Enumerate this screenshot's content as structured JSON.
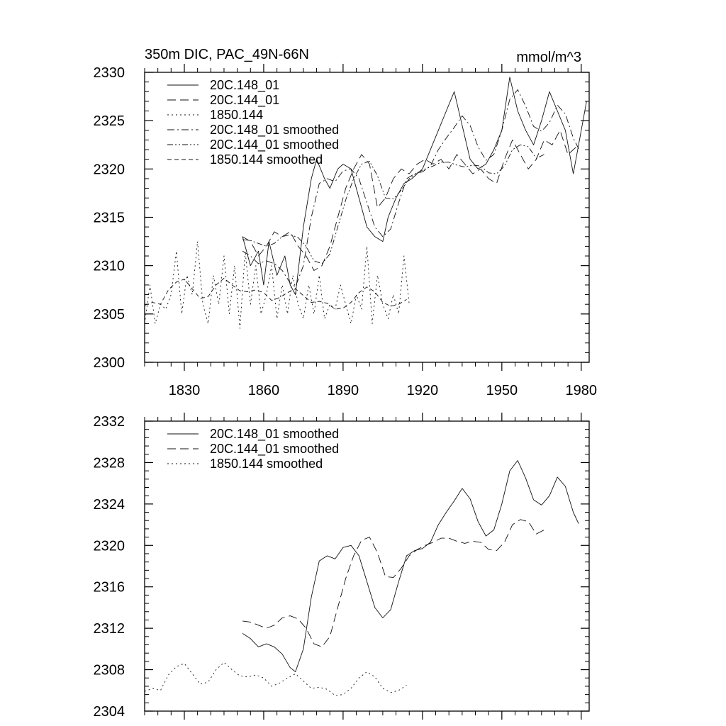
{
  "chart_data": [
    {
      "type": "line",
      "title": "350m DIC, PAC_49N-66N",
      "units_label": "mmol/m^3",
      "xlim": [
        1815,
        1983
      ],
      "ylim": [
        2300,
        2330
      ],
      "xticks": [
        1830,
        1860,
        1890,
        1920,
        1950,
        1980
      ],
      "yticks": [
        2300,
        2305,
        2310,
        2315,
        2320,
        2325,
        2330
      ],
      "xtick_labels": [
        "1830",
        "1860",
        "1890",
        "1920",
        "1950",
        "1980"
      ],
      "ytick_labels": [
        "2300",
        "2305",
        "2310",
        "2315",
        "2320",
        "2325",
        "2330"
      ],
      "legend_position": "top-left",
      "series": [
        {
          "name": "20C.148_01",
          "dash": "solid",
          "x": [
            1852,
            1855,
            1858,
            1860,
            1862,
            1865,
            1868,
            1870,
            1872,
            1875,
            1878,
            1880,
            1883,
            1885,
            1888,
            1890,
            1893,
            1896,
            1899,
            1902,
            1905,
            1907,
            1910,
            1913,
            1916,
            1920,
            1923,
            1926,
            1929,
            1932,
            1935,
            1938,
            1941,
            1944,
            1947,
            1950,
            1953,
            1956,
            1959,
            1962,
            1965,
            1968,
            1971,
            1974,
            1977,
            1979,
            1982
          ],
          "y": [
            2313,
            2310,
            2311.5,
            2308,
            2312.5,
            2309,
            2311,
            2308,
            2307,
            2314,
            2319,
            2321,
            2319,
            2318,
            2320,
            2320.5,
            2320,
            2317,
            2314,
            2313,
            2312.5,
            2315,
            2317,
            2318.5,
            2319,
            2320,
            2322,
            2324,
            2326,
            2328,
            2324.5,
            2321,
            2320,
            2320.5,
            2322,
            2324,
            2329.5,
            2326,
            2324,
            2322.5,
            2325,
            2328,
            2326,
            2324,
            2319.5,
            2322.5,
            2327
          ]
        },
        {
          "name": "20C.144_01",
          "dash": "longdash",
          "x": [
            1852,
            1855,
            1858,
            1861,
            1864,
            1867,
            1870,
            1873,
            1876,
            1879,
            1882,
            1885,
            1888,
            1891,
            1894,
            1897,
            1900,
            1903,
            1906,
            1909,
            1912,
            1915,
            1918,
            1921,
            1924,
            1927,
            1930,
            1933,
            1936,
            1939,
            1942,
            1945,
            1948,
            1951,
            1954,
            1957,
            1960,
            1963,
            1966,
            1969,
            1972,
            1975,
            1979
          ],
          "y": [
            2313,
            2312.5,
            2311,
            2312,
            2313.5,
            2313,
            2313.5,
            2312,
            2311,
            2309.5,
            2310,
            2312,
            2315,
            2318,
            2320,
            2321.5,
            2320.5,
            2316,
            2317,
            2319,
            2320,
            2319.5,
            2320.5,
            2321,
            2320.5,
            2321,
            2320,
            2321.5,
            2320.5,
            2319.5,
            2320,
            2319,
            2318.5,
            2321,
            2323,
            2321.5,
            2320,
            2321,
            2323,
            2322.5,
            2324,
            2321.5,
            2322.5
          ]
        },
        {
          "name": "1850.144",
          "dash": "dotted",
          "x": [
            1815,
            1817,
            1819,
            1821,
            1823,
            1825,
            1827,
            1829,
            1831,
            1833,
            1835,
            1837,
            1839,
            1841,
            1843,
            1845,
            1847,
            1849,
            1851,
            1853,
            1855,
            1857,
            1859,
            1861,
            1863,
            1865,
            1867,
            1869,
            1871,
            1873,
            1875,
            1877,
            1879,
            1881,
            1883,
            1885,
            1887,
            1889,
            1891,
            1893,
            1895,
            1897,
            1899,
            1901,
            1903,
            1905,
            1907,
            1909,
            1911,
            1913,
            1915
          ],
          "y": [
            2304,
            2308,
            2304,
            2306,
            2305.5,
            2307,
            2311.5,
            2305,
            2309,
            2307,
            2312.5,
            2306,
            2304,
            2309,
            2306,
            2311,
            2305,
            2310,
            2303.5,
            2311.5,
            2306,
            2310,
            2305,
            2307,
            2310,
            2304.5,
            2308,
            2305,
            2309,
            2306,
            2304.5,
            2308,
            2305,
            2309,
            2304.5,
            2306,
            2305.5,
            2308,
            2306,
            2304,
            2307,
            2305.5,
            2312,
            2304,
            2309,
            2306,
            2304.5,
            2307,
            2305,
            2311,
            2306
          ]
        },
        {
          "name": "20C.148_01 smoothed",
          "dash": "dashdot",
          "x": [
            1852,
            1855,
            1858,
            1861,
            1864,
            1867,
            1870,
            1872,
            1875,
            1878,
            1881,
            1884,
            1887,
            1890,
            1893,
            1896,
            1899,
            1902,
            1905,
            1908,
            1911,
            1914,
            1917,
            1920,
            1923,
            1926,
            1929,
            1932,
            1935,
            1938,
            1941,
            1944,
            1947,
            1950,
            1953,
            1956,
            1959,
            1962,
            1965,
            1968,
            1971,
            1974,
            1977,
            1979
          ],
          "y": [
            2311.5,
            2311,
            2310.2,
            2310.5,
            2310.2,
            2309.5,
            2308.2,
            2307.8,
            2310,
            2315,
            2318.5,
            2319,
            2318.7,
            2319.8,
            2320,
            2319,
            2316.5,
            2314,
            2313,
            2313.8,
            2316.5,
            2319,
            2319.5,
            2319.7,
            2320.3,
            2322,
            2323.2,
            2324.3,
            2325.5,
            2324.5,
            2322.3,
            2320.9,
            2321.5,
            2324,
            2327.2,
            2328.2,
            2326.5,
            2324.4,
            2323.9,
            2324.8,
            2326.6,
            2325.7,
            2323.2,
            2322.1
          ]
        },
        {
          "name": "20C.144_01 smoothed",
          "dash": "dashdotdot",
          "x": [
            1852,
            1855,
            1858,
            1861,
            1864,
            1867,
            1870,
            1873,
            1876,
            1879,
            1882,
            1885,
            1888,
            1891,
            1894,
            1897,
            1900,
            1903,
            1906,
            1909,
            1912,
            1915,
            1918,
            1921,
            1924,
            1927,
            1930,
            1933,
            1936,
            1939,
            1942,
            1945,
            1948,
            1951,
            1954,
            1957,
            1960,
            1963,
            1966
          ],
          "y": [
            2312.7,
            2312.6,
            2312.3,
            2312,
            2312.3,
            2313,
            2313.2,
            2312.9,
            2312,
            2310.5,
            2310.2,
            2311.2,
            2314,
            2316.8,
            2319,
            2320.5,
            2320.8,
            2319.3,
            2317,
            2316.9,
            2317.8,
            2319,
            2319.6,
            2320,
            2320.3,
            2320.7,
            2320.7,
            2320.4,
            2320.2,
            2320.4,
            2320.3,
            2319.6,
            2319.5,
            2320.3,
            2322,
            2322.5,
            2322.3,
            2321.1,
            2321.5
          ]
        },
        {
          "name": "1850.144 smoothed",
          "dash": "shortdash",
          "x": [
            1815,
            1818,
            1821,
            1824,
            1827,
            1830,
            1833,
            1836,
            1839,
            1842,
            1845,
            1848,
            1851,
            1854,
            1857,
            1860,
            1863,
            1866,
            1869,
            1872,
            1875,
            1878,
            1881,
            1884,
            1887,
            1890,
            1893,
            1896,
            1899,
            1902,
            1905,
            1908,
            1911,
            1914
          ],
          "y": [
            2305.9,
            2306.2,
            2306,
            2307.5,
            2308.3,
            2308.6,
            2307.6,
            2306.6,
            2306.8,
            2308,
            2308.7,
            2308,
            2307.4,
            2307.3,
            2307.5,
            2307.2,
            2306.4,
            2306.7,
            2307.2,
            2307.6,
            2306.9,
            2306.2,
            2306.3,
            2306.1,
            2305.5,
            2305.6,
            2306.2,
            2307.2,
            2307.8,
            2307.3,
            2306.2,
            2305.8,
            2306,
            2306.5
          ]
        }
      ]
    },
    {
      "type": "line",
      "title": "",
      "xlim": [
        1815,
        1983
      ],
      "ylim": [
        2304,
        2332
      ],
      "xticks": [
        1830,
        1860,
        1890,
        1920,
        1950,
        1980
      ],
      "yticks": [
        2304,
        2308,
        2312,
        2316,
        2320,
        2324,
        2328,
        2332
      ],
      "ytick_labels": [
        "2304",
        "2308",
        "2312",
        "2316",
        "2320",
        "2324",
        "2328",
        "2332"
      ],
      "legend_position": "top-left",
      "series": [
        {
          "name": "20C.148_01 smoothed",
          "dash": "solid",
          "x": [
            1852,
            1855,
            1858,
            1861,
            1864,
            1867,
            1870,
            1872,
            1875,
            1878,
            1881,
            1884,
            1887,
            1890,
            1893,
            1896,
            1899,
            1902,
            1905,
            1908,
            1911,
            1914,
            1917,
            1920,
            1923,
            1926,
            1929,
            1932,
            1935,
            1938,
            1941,
            1944,
            1947,
            1950,
            1953,
            1956,
            1959,
            1962,
            1965,
            1968,
            1971,
            1974,
            1977,
            1979
          ],
          "y": [
            2311.5,
            2311,
            2310.2,
            2310.5,
            2310.2,
            2309.5,
            2308.2,
            2307.8,
            2310,
            2315,
            2318.5,
            2319,
            2318.7,
            2319.8,
            2320,
            2319,
            2316.5,
            2314,
            2313,
            2313.8,
            2316.5,
            2319,
            2319.5,
            2319.7,
            2320.3,
            2322,
            2323.2,
            2324.3,
            2325.5,
            2324.5,
            2322.3,
            2320.9,
            2321.5,
            2324,
            2327.2,
            2328.2,
            2326.5,
            2324.4,
            2323.9,
            2324.8,
            2326.6,
            2325.7,
            2323.2,
            2322.1
          ]
        },
        {
          "name": "20C.144_01 smoothed",
          "dash": "longdash",
          "x": [
            1852,
            1855,
            1858,
            1861,
            1864,
            1867,
            1870,
            1873,
            1876,
            1879,
            1882,
            1885,
            1888,
            1891,
            1894,
            1897,
            1900,
            1903,
            1906,
            1909,
            1912,
            1915,
            1918,
            1921,
            1924,
            1927,
            1930,
            1933,
            1936,
            1939,
            1942,
            1945,
            1948,
            1951,
            1954,
            1957,
            1960,
            1963,
            1966
          ],
          "y": [
            2312.7,
            2312.6,
            2312.3,
            2312,
            2312.3,
            2313,
            2313.2,
            2312.9,
            2312,
            2310.5,
            2310.2,
            2311.2,
            2314,
            2316.8,
            2319,
            2320.5,
            2320.8,
            2319.3,
            2317,
            2316.9,
            2317.8,
            2319,
            2319.6,
            2320,
            2320.3,
            2320.7,
            2320.7,
            2320.4,
            2320.2,
            2320.4,
            2320.3,
            2319.6,
            2319.5,
            2320.3,
            2322,
            2322.5,
            2322.3,
            2321.1,
            2321.5
          ]
        },
        {
          "name": "1850.144 smoothed",
          "dash": "dotted",
          "x": [
            1815,
            1818,
            1821,
            1824,
            1827,
            1830,
            1833,
            1836,
            1839,
            1842,
            1845,
            1848,
            1851,
            1854,
            1857,
            1860,
            1863,
            1866,
            1869,
            1872,
            1875,
            1878,
            1881,
            1884,
            1887,
            1890,
            1893,
            1896,
            1899,
            1902,
            1905,
            1908,
            1911,
            1914
          ],
          "y": [
            2305.9,
            2306.2,
            2306,
            2307.5,
            2308.3,
            2308.6,
            2307.6,
            2306.6,
            2306.8,
            2308,
            2308.7,
            2308,
            2307.4,
            2307.3,
            2307.5,
            2307.2,
            2306.4,
            2306.7,
            2307.2,
            2307.6,
            2306.9,
            2306.2,
            2306.3,
            2306.1,
            2305.5,
            2305.6,
            2306.2,
            2307.2,
            2307.8,
            2307.3,
            2306.2,
            2305.8,
            2306,
            2306.5
          ]
        }
      ]
    }
  ]
}
